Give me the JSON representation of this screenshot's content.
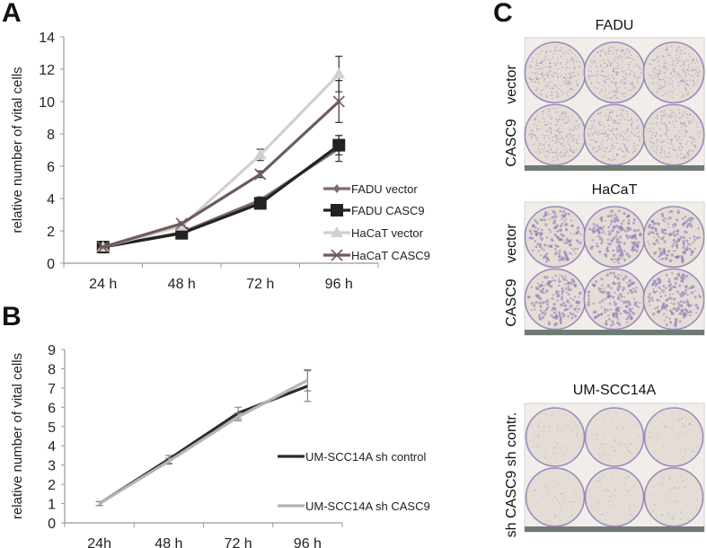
{
  "panels": {
    "a": "A",
    "b": "B",
    "c": "C"
  },
  "chart_data": [
    {
      "type": "line",
      "ylabel": "relative number of vital cells",
      "categories": [
        "24 h",
        "48 h",
        "72 h",
        "96 h"
      ],
      "ylim": [
        0,
        14
      ],
      "yticks": [
        0,
        2,
        4,
        6,
        8,
        10,
        12,
        14
      ],
      "grid": false,
      "legend": "right",
      "series": [
        {
          "name": "FADU vector",
          "values": [
            1.0,
            1.9,
            3.9,
            7.1
          ],
          "errors": [
            0.05,
            0.1,
            0.2,
            0.8
          ],
          "color": "#7d6d69",
          "marker": "diamond"
        },
        {
          "name": "FADU CASC9",
          "values": [
            1.0,
            1.85,
            3.7,
            7.3
          ],
          "errors": [
            0.05,
            0.1,
            0.2,
            0.6
          ],
          "color": "#222222",
          "marker": "square"
        },
        {
          "name": "HaCaT vector",
          "values": [
            1.0,
            2.3,
            6.7,
            11.7
          ],
          "errors": [
            0.05,
            0.1,
            0.35,
            1.1
          ],
          "color": "#d3cfcf",
          "marker": "triangle"
        },
        {
          "name": "HaCaT CASC9",
          "values": [
            1.0,
            2.45,
            5.5,
            10.0
          ],
          "errors": [
            0.05,
            0.1,
            0.2,
            1.3
          ],
          "color": "#6f5b59",
          "marker": "x"
        }
      ]
    },
    {
      "type": "line",
      "ylabel": "relative number of vital cells",
      "categories": [
        "24h",
        "48 h",
        "72 h",
        "96 h"
      ],
      "ylim": [
        0,
        9
      ],
      "yticks": [
        0,
        1,
        2,
        3,
        4,
        5,
        6,
        7,
        8,
        9
      ],
      "grid": false,
      "legend": "right",
      "series": [
        {
          "name": "UM-SCC14A sh control",
          "values": [
            1.0,
            3.3,
            5.7,
            7.1
          ],
          "errors": [
            0.1,
            0.2,
            0.3,
            0.8
          ],
          "color": "#2a2a2a"
        },
        {
          "name": "UM-SCC14A sh CASC9",
          "values": [
            1.0,
            3.2,
            5.5,
            7.4
          ],
          "errors": [
            0.1,
            0.15,
            0.2,
            0.55
          ],
          "color": "#bab2b0"
        }
      ]
    }
  ],
  "plates": [
    {
      "title": "FADU",
      "rows": [
        "vector",
        "CASC9"
      ],
      "stain": "dense"
    },
    {
      "title": "HaCaT",
      "rows": [
        "vector",
        "CASC9"
      ],
      "stain": "colonies"
    },
    {
      "title": "UM-SCC14A",
      "rows": [
        "sh contr.",
        "sh CASC9"
      ],
      "stain": "faint"
    }
  ],
  "colors": {
    "stain": "#8a74b4",
    "well": "#e4ddd6",
    "plate": "#f1eeea"
  }
}
